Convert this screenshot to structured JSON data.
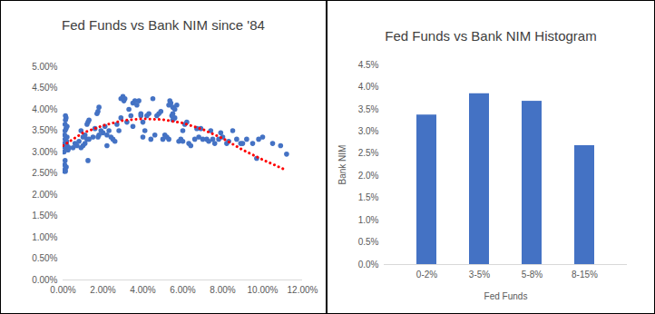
{
  "chart_data": [
    {
      "type": "scatter",
      "title": "Fed Funds vs Bank NIM since '84",
      "xlim": [
        0,
        12
      ],
      "xticks": [
        {
          "value": 0,
          "label": "0.00%"
        },
        {
          "value": 2,
          "label": "2.00%"
        },
        {
          "value": 4,
          "label": "4.00%"
        },
        {
          "value": 6,
          "label": "6.00%"
        },
        {
          "value": 8,
          "label": "8.00%"
        },
        {
          "value": 10,
          "label": "10.00%"
        },
        {
          "value": 12,
          "label": "12.00%"
        }
      ],
      "ylim": [
        0,
        5
      ],
      "yticks": [
        {
          "value": 0,
          "label": "0.00%"
        },
        {
          "value": 0.5,
          "label": "0.50%"
        },
        {
          "value": 1,
          "label": "1.00%"
        },
        {
          "value": 1.5,
          "label": "1.50%"
        },
        {
          "value": 2,
          "label": "2.00%"
        },
        {
          "value": 2.5,
          "label": "2.50%"
        },
        {
          "value": 3,
          "label": "3.00%"
        },
        {
          "value": 3.5,
          "label": "3.50%"
        },
        {
          "value": 4,
          "label": "4.00%"
        },
        {
          "value": 4.5,
          "label": "4.50%"
        },
        {
          "value": 5,
          "label": "5.00%"
        }
      ],
      "grid": false,
      "series": [
        {
          "type": "scatter",
          "color": "#4472c4",
          "marker": "circle",
          "x": [
            0.05,
            0.1,
            0.08,
            0.1,
            0.12,
            0.05,
            0.1,
            0.15,
            0.1,
            0.2,
            0.1,
            0.15,
            0.1,
            0.12,
            0.15,
            0.2,
            0.25,
            0.2,
            0.18,
            0.12,
            0.3,
            0.05,
            0.08,
            0.16,
            0.5,
            0.7,
            0.9,
            1.0,
            1.1,
            0.6,
            0.8,
            1.2,
            1.0,
            1.3,
            1.5,
            1.25,
            1.25,
            1.3,
            1.2,
            1.75,
            1.8,
            1.7,
            1.6,
            1.75,
            1.8,
            1.9,
            2.0,
            0.9,
            1.1,
            2.1,
            2.2,
            2.3,
            2.5,
            2.6,
            2.7,
            2.8,
            2.9,
            3.0,
            3.05,
            3.1,
            2.4,
            2.9,
            2.2,
            3.2,
            3.3,
            3.5,
            3.6,
            3.7,
            3.8,
            3.4,
            3.5,
            3.9,
            4.0,
            4.1,
            4.2,
            4.3,
            4.5,
            4.6,
            4.7,
            4.8,
            4.9,
            5.0,
            4.4,
            4.0,
            3.9,
            5.1,
            5.2,
            5.3,
            5.35,
            5.4,
            5.5,
            5.45,
            5.5,
            5.6,
            5.7,
            5.8,
            5.9,
            6.0,
            6.1,
            6.2,
            6.3,
            6.4,
            5.3,
            5.5,
            5.6,
            6.0,
            6.6,
            6.8,
            7.0,
            7.2,
            7.4,
            7.5,
            7.6,
            7.8,
            7.9,
            8.0,
            6.7,
            6.9,
            7.3,
            8.2,
            8.3,
            8.5,
            8.7,
            8.9,
            9.0,
            9.2,
            9.5,
            9.7,
            9.8,
            10.0,
            10.5,
            10.9,
            11.2
          ],
          "values": [
            2.55,
            2.6,
            2.7,
            2.8,
            2.55,
            3.0,
            3.1,
            3.2,
            3.3,
            3.35,
            3.5,
            3.55,
            3.65,
            3.75,
            3.8,
            3.6,
            3.05,
            3.15,
            3.25,
            3.85,
            3.1,
            3.2,
            3.4,
            2.65,
            3.1,
            3.15,
            3.1,
            3.15,
            3.2,
            3.2,
            3.25,
            3.3,
            3.35,
            3.3,
            3.35,
            2.8,
            3.7,
            3.75,
            3.65,
            3.95,
            4.05,
            3.9,
            3.55,
            3.35,
            3.4,
            3.5,
            3.45,
            3.5,
            3.4,
            3.6,
            3.4,
            3.5,
            3.3,
            3.25,
            3.65,
            3.5,
            4.25,
            4.3,
            4.2,
            4.25,
            3.35,
            3.8,
            3.15,
            3.7,
            4.0,
            4.15,
            4.2,
            4.1,
            4.2,
            3.85,
            3.6,
            3.85,
            3.7,
            3.5,
            3.85,
            3.9,
            4.25,
            3.4,
            3.85,
            3.9,
            3.95,
            3.3,
            3.3,
            3.35,
            3.9,
            3.4,
            3.35,
            4.1,
            4.2,
            4.15,
            4.05,
            3.85,
            3.75,
            3.8,
            4.1,
            3.25,
            3.3,
            3.5,
            3.65,
            3.7,
            3.2,
            3.15,
            3.3,
            3.9,
            4.0,
            3.25,
            3.3,
            3.35,
            3.3,
            3.3,
            3.5,
            3.3,
            3.2,
            3.3,
            3.45,
            3.35,
            3.55,
            3.55,
            3.25,
            3.2,
            3.25,
            3.5,
            3.3,
            3.2,
            3.2,
            3.3,
            3.2,
            2.85,
            3.3,
            3.35,
            3.2,
            3.15,
            2.95
          ]
        },
        {
          "type": "line",
          "color": "#ff0000",
          "line_style": "dotted",
          "x": [
            0,
            1,
            2,
            3,
            4,
            5,
            6,
            7,
            8,
            9,
            10,
            11.2
          ],
          "values": [
            3.15,
            3.45,
            3.62,
            3.74,
            3.78,
            3.76,
            3.68,
            3.53,
            3.32,
            3.05,
            2.82,
            2.57
          ]
        }
      ]
    },
    {
      "type": "bar",
      "title": "Fed Funds vs Bank NIM Histogram",
      "x_label": "Fed Funds",
      "y_label": "Bank NIM",
      "categories": [
        "0-2%",
        "3-5%",
        "5-8%",
        "8-15%"
      ],
      "values": [
        3.37,
        3.85,
        3.68,
        2.68
      ],
      "color": "#4472c4",
      "ylim": [
        0,
        4.5
      ],
      "yticks": [
        {
          "value": 0,
          "label": "0.0%"
        },
        {
          "value": 0.5,
          "label": "0.5%"
        },
        {
          "value": 1,
          "label": "1.0%"
        },
        {
          "value": 1.5,
          "label": "1.5%"
        },
        {
          "value": 2,
          "label": "2.0%"
        },
        {
          "value": 2.5,
          "label": "2.5%"
        },
        {
          "value": 3,
          "label": "3.0%"
        },
        {
          "value": 3.5,
          "label": "3.5%"
        },
        {
          "value": 4,
          "label": "4.0%"
        },
        {
          "value": 4.5,
          "label": "4.5%"
        }
      ],
      "grid": false
    }
  ]
}
